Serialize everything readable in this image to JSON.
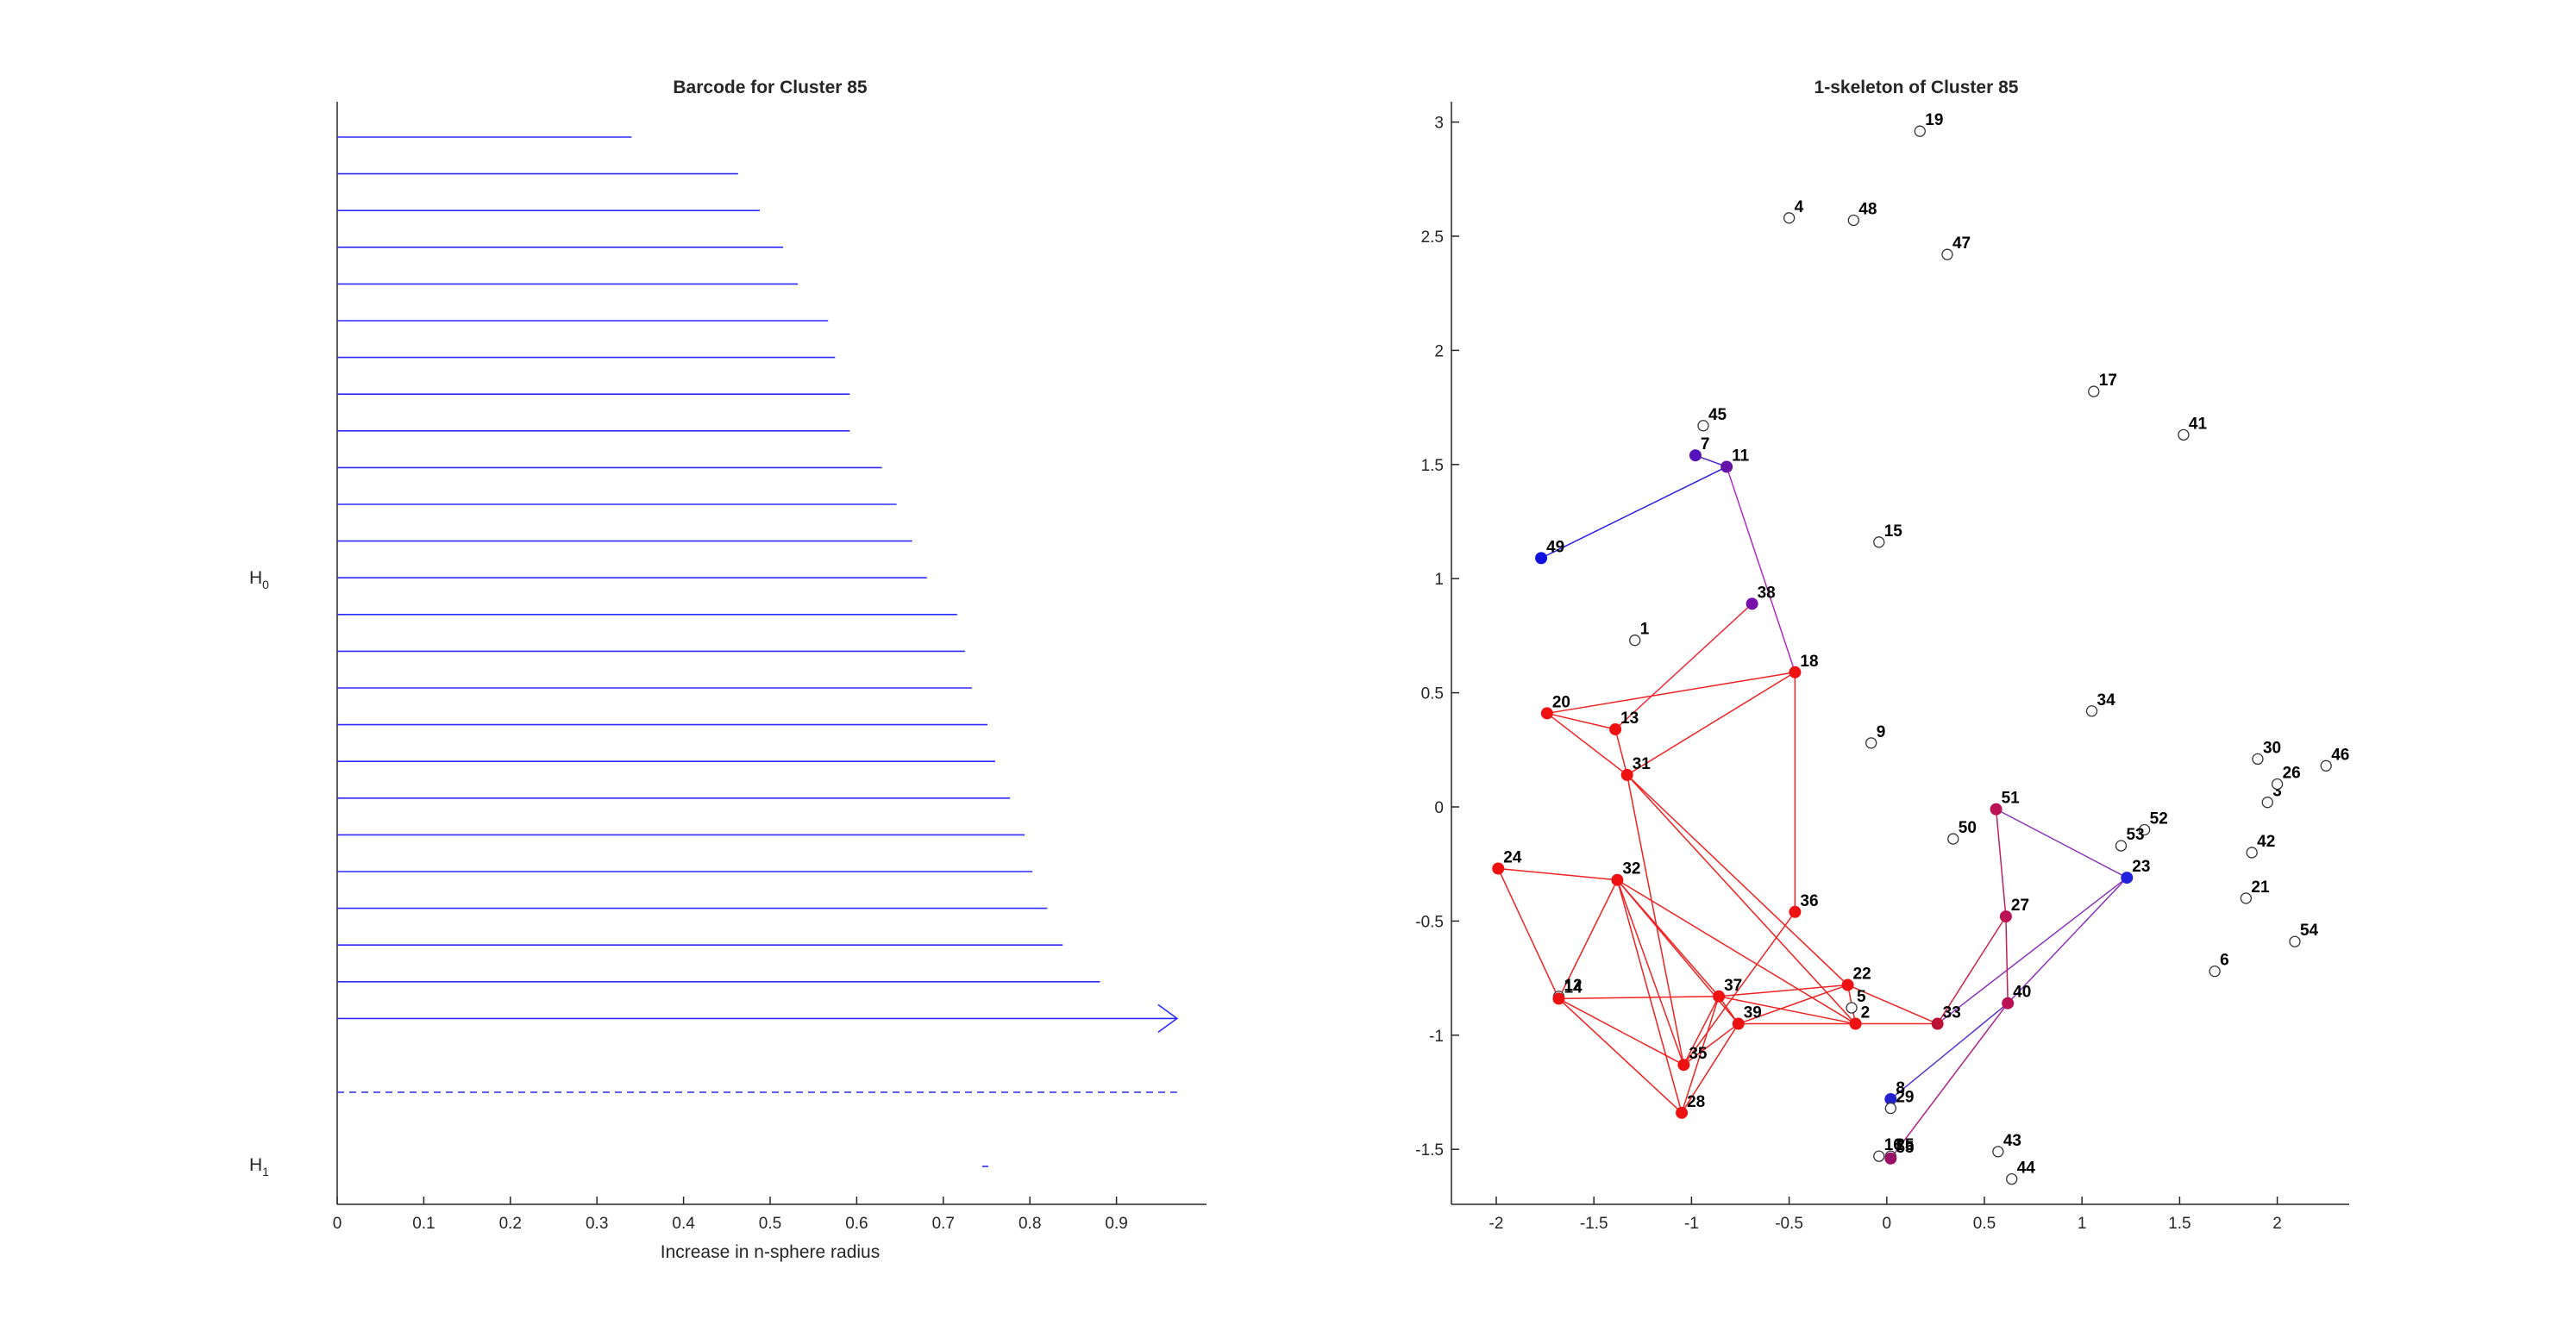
{
  "chart_data": [
    {
      "type": "barcode",
      "title": "Barcode for Cluster 85",
      "xlabel": "Increase in n-sphere radius",
      "xlim": [
        0,
        0.97
      ],
      "xticks": [
        0,
        0.1,
        0.2,
        0.3,
        0.4,
        0.5,
        0.6,
        0.7,
        0.8,
        0.9
      ],
      "xtick_labels": [
        "0",
        "0.1",
        "0.2",
        "0.3",
        "0.4",
        "0.5",
        "0.6",
        "0.7",
        "0.8",
        "0.9"
      ],
      "groups": [
        {
          "label": "H",
          "subscript": "0"
        },
        {
          "label": "H",
          "subscript": "1"
        }
      ],
      "h0_bars": [
        0.34,
        0.463,
        0.488,
        0.515,
        0.532,
        0.567,
        0.575,
        0.592,
        0.592,
        0.629,
        0.646,
        0.664,
        0.681,
        0.716,
        0.725,
        0.733,
        0.751,
        0.76,
        0.777,
        0.794,
        0.803,
        0.82,
        0.838,
        0.881
      ],
      "h0_infinite_bars": 1,
      "h1_bars": [
        [
          0.745,
          0.752
        ]
      ],
      "color": "#2b2bff"
    },
    {
      "type": "graph",
      "title": "1-skeleton of Cluster 85",
      "xlim": [
        -2.05,
        2.35
      ],
      "ylim": [
        -1.72,
        3.12
      ],
      "xticks": [
        -2,
        -1.5,
        -1,
        -0.5,
        0,
        0.5,
        1,
        1.5,
        2
      ],
      "xtick_labels": [
        "-2",
        "-1.5",
        "-1",
        "-0.5",
        "0",
        "0.5",
        "1",
        "1.5",
        "2"
      ],
      "yticks": [
        -1.5,
        -1,
        -0.5,
        0,
        0.5,
        1,
        1.5,
        2,
        2.5,
        3
      ],
      "ytick_labels": [
        "-1.5",
        "-1",
        "-0.5",
        "0",
        "0.5",
        "1",
        "1.5",
        "2",
        "2.5",
        "3"
      ],
      "nodes": [
        {
          "id": "1",
          "x": -1.29,
          "y": 0.73,
          "filled": false,
          "color": "#ffffff"
        },
        {
          "id": "2",
          "x": -0.16,
          "y": -0.95,
          "filled": true,
          "color": "#ee1111"
        },
        {
          "id": "3",
          "x": 1.95,
          "y": 0.02,
          "filled": false,
          "color": "#ffffff"
        },
        {
          "id": "4",
          "x": -0.5,
          "y": 2.58,
          "filled": false,
          "color": "#ffffff"
        },
        {
          "id": "5",
          "x": -0.18,
          "y": -0.88,
          "filled": false,
          "color": "#ffffff"
        },
        {
          "id": "6",
          "x": 1.68,
          "y": -0.72,
          "filled": false,
          "color": "#ffffff"
        },
        {
          "id": "7",
          "x": -0.98,
          "y": 1.54,
          "filled": true,
          "color": "#5511bb"
        },
        {
          "id": "8",
          "x": 0.02,
          "y": -1.28,
          "filled": true,
          "color": "#2222cc"
        },
        {
          "id": "9",
          "x": -0.08,
          "y": 0.28,
          "filled": false,
          "color": "#ffffff"
        },
        {
          "id": "11",
          "x": -0.82,
          "y": 1.49,
          "filled": true,
          "color": "#6611aa"
        },
        {
          "id": "12",
          "x": -1.68,
          "y": -0.83,
          "filled": false,
          "color": "#ffffff"
        },
        {
          "id": "13",
          "x": -1.39,
          "y": 0.34,
          "filled": true,
          "color": "#ee1111"
        },
        {
          "id": "14",
          "x": -1.68,
          "y": -0.84,
          "filled": true,
          "color": "#ee1111"
        },
        {
          "id": "15",
          "x": -0.04,
          "y": 1.16,
          "filled": false,
          "color": "#ffffff"
        },
        {
          "id": "16",
          "x": -0.04,
          "y": -1.53,
          "filled": false,
          "color": "#ffffff"
        },
        {
          "id": "17",
          "x": 1.06,
          "y": 1.82,
          "filled": false,
          "color": "#ffffff"
        },
        {
          "id": "18",
          "x": -0.47,
          "y": 0.59,
          "filled": true,
          "color": "#ee1111"
        },
        {
          "id": "19",
          "x": 0.17,
          "y": 2.96,
          "filled": false,
          "color": "#ffffff"
        },
        {
          "id": "20",
          "x": -1.74,
          "y": 0.41,
          "filled": true,
          "color": "#ee1111"
        },
        {
          "id": "21",
          "x": 1.84,
          "y": -0.4,
          "filled": false,
          "color": "#ffffff"
        },
        {
          "id": "22",
          "x": -0.2,
          "y": -0.78,
          "filled": true,
          "color": "#ee1111"
        },
        {
          "id": "23",
          "x": 1.23,
          "y": -0.31,
          "filled": true,
          "color": "#2222dd"
        },
        {
          "id": "24",
          "x": -1.99,
          "y": -0.27,
          "filled": true,
          "color": "#ee1111"
        },
        {
          "id": "25",
          "x": 0.02,
          "y": -1.53,
          "filled": false,
          "color": "#ffffff"
        },
        {
          "id": "26",
          "x": 2.0,
          "y": 0.1,
          "filled": false,
          "color": "#ffffff"
        },
        {
          "id": "27",
          "x": 0.61,
          "y": -0.48,
          "filled": true,
          "color": "#bb1155"
        },
        {
          "id": "28",
          "x": -1.05,
          "y": -1.34,
          "filled": true,
          "color": "#ee1111"
        },
        {
          "id": "29",
          "x": 0.02,
          "y": -1.32,
          "filled": false,
          "color": "#ffffff"
        },
        {
          "id": "30",
          "x": 1.9,
          "y": 0.21,
          "filled": false,
          "color": "#ffffff"
        },
        {
          "id": "31",
          "x": -1.33,
          "y": 0.14,
          "filled": true,
          "color": "#ee1111"
        },
        {
          "id": "32",
          "x": -1.38,
          "y": -0.32,
          "filled": true,
          "color": "#ee1111"
        },
        {
          "id": "33",
          "x": 0.26,
          "y": -0.95,
          "filled": true,
          "color": "#bb1133"
        },
        {
          "id": "34",
          "x": 1.05,
          "y": 0.42,
          "filled": false,
          "color": "#ffffff"
        },
        {
          "id": "35",
          "x": -1.04,
          "y": -1.13,
          "filled": true,
          "color": "#ee1111"
        },
        {
          "id": "36",
          "x": -0.47,
          "y": -0.46,
          "filled": true,
          "color": "#ee1111"
        },
        {
          "id": "37",
          "x": -0.86,
          "y": -0.83,
          "filled": true,
          "color": "#ee1111"
        },
        {
          "id": "38",
          "x": -0.69,
          "y": 0.89,
          "filled": true,
          "color": "#7711aa"
        },
        {
          "id": "39",
          "x": -0.76,
          "y": -0.95,
          "filled": true,
          "color": "#ee1111"
        },
        {
          "id": "40",
          "x": 0.62,
          "y": -0.86,
          "filled": true,
          "color": "#bb1155"
        },
        {
          "id": "41",
          "x": 1.52,
          "y": 1.63,
          "filled": false,
          "color": "#ffffff"
        },
        {
          "id": "42",
          "x": 1.87,
          "y": -0.2,
          "filled": false,
          "color": "#ffffff"
        },
        {
          "id": "43",
          "x": 0.57,
          "y": -1.51,
          "filled": false,
          "color": "#ffffff"
        },
        {
          "id": "44",
          "x": 0.64,
          "y": -1.63,
          "filled": false,
          "color": "#ffffff"
        },
        {
          "id": "45",
          "x": -0.94,
          "y": 1.67,
          "filled": false,
          "color": "#ffffff"
        },
        {
          "id": "46",
          "x": 2.25,
          "y": 0.18,
          "filled": false,
          "color": "#ffffff"
        },
        {
          "id": "47",
          "x": 0.31,
          "y": 2.42,
          "filled": false,
          "color": "#ffffff"
        },
        {
          "id": "48",
          "x": -0.17,
          "y": 2.57,
          "filled": false,
          "color": "#ffffff"
        },
        {
          "id": "49",
          "x": -1.77,
          "y": 1.09,
          "filled": true,
          "color": "#1111dd"
        },
        {
          "id": "50",
          "x": 0.34,
          "y": -0.14,
          "filled": false,
          "color": "#ffffff"
        },
        {
          "id": "51",
          "x": 0.56,
          "y": -0.01,
          "filled": true,
          "color": "#bb1155"
        },
        {
          "id": "52",
          "x": 1.32,
          "y": -0.1,
          "filled": false,
          "color": "#ffffff"
        },
        {
          "id": "53",
          "x": 1.2,
          "y": -0.17,
          "filled": false,
          "color": "#ffffff"
        },
        {
          "id": "54",
          "x": 2.09,
          "y": -0.59,
          "filled": false,
          "color": "#ffffff"
        },
        {
          "id": "55",
          "x": 0.02,
          "y": -1.54,
          "filled": true,
          "color": "#991166"
        }
      ],
      "edges": [
        {
          "a": "49",
          "b": "11",
          "color": "#2a1ee6"
        },
        {
          "a": "7",
          "b": "11",
          "color": "#4a1ecc"
        },
        {
          "a": "11",
          "b": "18",
          "color": "#aa2dbb"
        },
        {
          "a": "38",
          "b": "13",
          "color": "#ee2a3a"
        },
        {
          "a": "20",
          "b": "13",
          "color": "#ee2222"
        },
        {
          "a": "20",
          "b": "18",
          "color": "#ee2222"
        },
        {
          "a": "13",
          "b": "31",
          "color": "#ee2222"
        },
        {
          "a": "31",
          "b": "18",
          "color": "#ee2222"
        },
        {
          "a": "20",
          "b": "31",
          "color": "#ee2222"
        },
        {
          "a": "18",
          "b": "36",
          "color": "#ee2222"
        },
        {
          "a": "31",
          "b": "22",
          "color": "#ee2222"
        },
        {
          "a": "31",
          "b": "2",
          "color": "#ee2222"
        },
        {
          "a": "31",
          "b": "35",
          "color": "#ee2222"
        },
        {
          "a": "24",
          "b": "32",
          "color": "#ee2222"
        },
        {
          "a": "24",
          "b": "14",
          "color": "#ee2222"
        },
        {
          "a": "32",
          "b": "14",
          "color": "#ee2222"
        },
        {
          "a": "32",
          "b": "37",
          "color": "#ee2222"
        },
        {
          "a": "32",
          "b": "39",
          "color": "#ee2222"
        },
        {
          "a": "32",
          "b": "35",
          "color": "#ee2222"
        },
        {
          "a": "32",
          "b": "28",
          "color": "#ee2222"
        },
        {
          "a": "32",
          "b": "2",
          "color": "#ee2222"
        },
        {
          "a": "14",
          "b": "37",
          "color": "#ee2222"
        },
        {
          "a": "14",
          "b": "35",
          "color": "#ee2222"
        },
        {
          "a": "14",
          "b": "28",
          "color": "#ee2222"
        },
        {
          "a": "37",
          "b": "22",
          "color": "#ee2222"
        },
        {
          "a": "37",
          "b": "2",
          "color": "#ee2222"
        },
        {
          "a": "37",
          "b": "39",
          "color": "#ee2222"
        },
        {
          "a": "37",
          "b": "35",
          "color": "#ee2222"
        },
        {
          "a": "37",
          "b": "28",
          "color": "#ee2222"
        },
        {
          "a": "39",
          "b": "22",
          "color": "#ee2222"
        },
        {
          "a": "39",
          "b": "2",
          "color": "#ee2222"
        },
        {
          "a": "39",
          "b": "35",
          "color": "#ee2222"
        },
        {
          "a": "39",
          "b": "28",
          "color": "#ee2222"
        },
        {
          "a": "36",
          "b": "35",
          "color": "#ee2222"
        },
        {
          "a": "22",
          "b": "2",
          "color": "#ee2222"
        },
        {
          "a": "22",
          "b": "33",
          "color": "#ee2222"
        },
        {
          "a": "2",
          "b": "33",
          "color": "#ee2222"
        },
        {
          "a": "33",
          "b": "27",
          "color": "#cc2244"
        },
        {
          "a": "33",
          "b": "23",
          "color": "#8833bb"
        },
        {
          "a": "27",
          "b": "40",
          "color": "#bb2255"
        },
        {
          "a": "51",
          "b": "27",
          "color": "#bb2266"
        },
        {
          "a": "51",
          "b": "23",
          "color": "#8833bb"
        },
        {
          "a": "40",
          "b": "23",
          "color": "#8833bb"
        },
        {
          "a": "40",
          "b": "8",
          "color": "#5533cc"
        },
        {
          "a": "40",
          "b": "55",
          "color": "#aa2288"
        }
      ]
    }
  ]
}
